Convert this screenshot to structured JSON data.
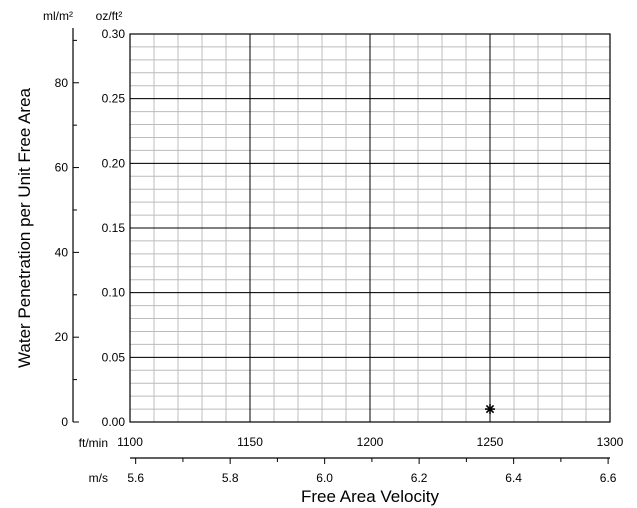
{
  "chart_data": {
    "type": "scatter",
    "title": "",
    "xlabel": "Free Area Velocity",
    "ylabel": "Water Penetration per Unit Free Area",
    "x_primary": {
      "unit": "ft/min",
      "range": [
        1100,
        1300
      ],
      "ticks": [
        "1100",
        "1150",
        "1200",
        "1250",
        "1300"
      ],
      "minor_step": 10
    },
    "x_secondary": {
      "unit": "m/s",
      "range": [
        5.588,
        6.604
      ],
      "ticks": [
        {
          "value": 5.6,
          "label": "5.6"
        },
        {
          "value": 5.8,
          "label": "5.8"
        },
        {
          "value": 6.0,
          "label": "6.0"
        },
        {
          "value": 6.2,
          "label": "6.2"
        },
        {
          "value": 6.4,
          "label": "6.4"
        },
        {
          "value": 6.6,
          "label": "6.6"
        }
      ],
      "minor_step": 0.1
    },
    "y_primary": {
      "unit": "oz/ft²",
      "range": [
        0,
        0.3
      ],
      "ticks": [
        "0.00",
        "0.05",
        "0.10",
        "0.15",
        "0.20",
        "0.25",
        "0.30"
      ],
      "minor_step": 0.01
    },
    "y_secondary": {
      "unit": "ml/m²",
      "range": [
        0,
        91.5
      ],
      "ticks": [
        {
          "value": 0,
          "label": "0"
        },
        {
          "value": 20,
          "label": "20"
        },
        {
          "value": 40,
          "label": "40"
        },
        {
          "value": 60,
          "label": "60"
        },
        {
          "value": 80,
          "label": "80"
        }
      ],
      "minor_step": 10
    },
    "grid": true,
    "series": [
      {
        "marker": "asterisk",
        "color": "#000000",
        "points": [
          {
            "x": 1250,
            "y": 0.01
          }
        ]
      }
    ]
  }
}
